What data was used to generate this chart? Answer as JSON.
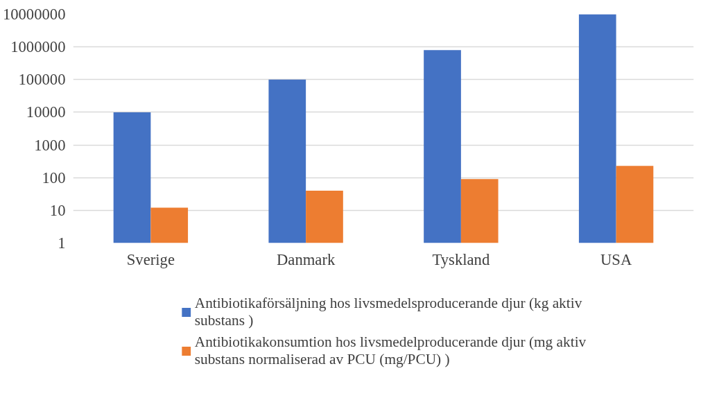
{
  "chart_data": {
    "type": "bar",
    "categories": [
      "Sverige",
      "Danmark",
      "Tyskland",
      "USA"
    ],
    "series": [
      {
        "name": "Antibiotikaförsäljning hos livsmedelsproducerande djur (kg aktiv substans )",
        "color": "#4472c4",
        "values": [
          10000,
          100000,
          800000,
          10000000
        ]
      },
      {
        "name": "Antibiotikakonsumtion hos livsmedelproducerande djur (mg aktiv substans normaliserad av PCU (mg/PCU) )",
        "color": "#ed7d31",
        "values": [
          12,
          40,
          90,
          230
        ]
      }
    ],
    "log": true,
    "ylim": [
      1,
      10000000
    ],
    "yticks": [
      1,
      10,
      100,
      1000,
      10000,
      100000,
      1000000,
      10000000
    ],
    "grid": "y",
    "legend": "bottom"
  }
}
